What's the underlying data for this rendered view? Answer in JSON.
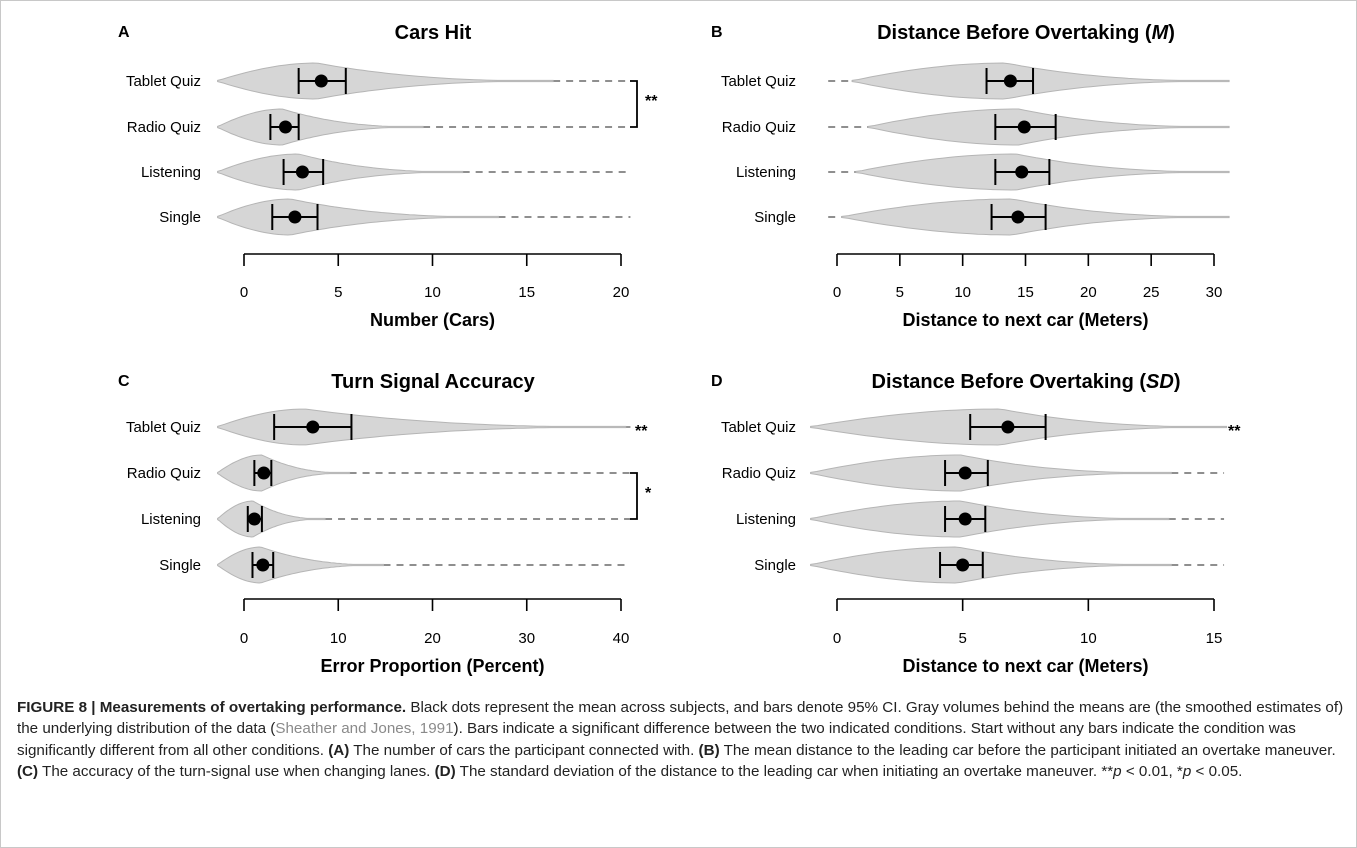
{
  "colors": {
    "violin": "#d6d6d6",
    "violin_stroke": "#b5b5b5",
    "dash": "#6a6a6a",
    "mark": "#000000"
  },
  "chart_data": [
    {
      "panel_letter": "A",
      "type": "violin",
      "title": "Cars Hit",
      "title_italic": "",
      "xlabel": "Number (Cars)",
      "xlim": [
        0,
        20
      ],
      "xticks": [
        0,
        5,
        10,
        15,
        20
      ],
      "categories": [
        "Tablet Quiz",
        "Radio Quiz",
        "Listening",
        "Single"
      ],
      "mean": [
        4.1,
        2.2,
        3.1,
        2.7
      ],
      "ci_low": [
        2.9,
        1.4,
        2.1,
        1.5
      ],
      "ci_high": [
        5.4,
        2.9,
        4.2,
        3.9
      ],
      "violin_max": [
        16.4,
        9.5,
        11.6,
        13.5
      ],
      "dash_start": [
        16.4,
        9.5,
        11.6,
        13.5
      ],
      "dash_end": [
        20.5,
        20.5,
        20.5,
        20.5
      ],
      "significance": [
        {
          "type": "bracket",
          "from": "Tablet Quiz",
          "to": "Radio Quiz",
          "label": "**"
        }
      ]
    },
    {
      "panel_letter": "B",
      "type": "violin",
      "title": "Distance Before Overtaking (",
      "title_italic": "M",
      "title_end": ")",
      "xlabel": "Distance to next car (Meters)",
      "xlim": [
        0,
        30
      ],
      "xticks": [
        0,
        5,
        10,
        15,
        20,
        25,
        30
      ],
      "categories": [
        "Tablet Quiz",
        "Radio Quiz",
        "Listening",
        "Single"
      ],
      "mean": [
        13.8,
        14.9,
        14.7,
        14.4
      ],
      "ci_low": [
        11.9,
        12.6,
        12.6,
        12.3
      ],
      "ci_high": [
        15.6,
        17.4,
        16.9,
        16.6
      ],
      "violin_min": [
        1.2,
        2.5,
        1.5,
        0.4
      ],
      "dash_start": [
        -0.7,
        -0.7,
        -0.7,
        -0.7
      ],
      "dash_end": [
        1.2,
        2.5,
        1.5,
        0.4
      ],
      "significance": []
    },
    {
      "panel_letter": "C",
      "type": "violin",
      "title": "Turn Signal Accuracy",
      "title_italic": "",
      "xlabel": "Error Proportion (Percent)",
      "xlim": [
        0,
        40
      ],
      "xticks": [
        0,
        10,
        20,
        30,
        40
      ],
      "categories": [
        "Tablet Quiz",
        "Radio Quiz",
        "Listening",
        "Single"
      ],
      "mean": [
        7.3,
        2.1,
        1.1,
        2.0
      ],
      "ci_low": [
        3.2,
        1.1,
        0.4,
        0.9
      ],
      "ci_high": [
        11.4,
        2.9,
        1.9,
        3.1
      ],
      "violin_max": [
        40.5,
        11.2,
        8.6,
        14.8
      ],
      "dash_start": [
        40.5,
        11.2,
        8.6,
        14.8
      ],
      "dash_end": [
        41,
        41,
        41,
        41
      ],
      "significance": [
        {
          "type": "star",
          "row": "Tablet Quiz",
          "label": "**"
        },
        {
          "type": "bracket",
          "from": "Radio Quiz",
          "to": "Listening",
          "label": "*"
        }
      ]
    },
    {
      "panel_letter": "D",
      "type": "violin",
      "title": "Distance Before Overtaking (",
      "title_italic": "SD",
      "title_end": ")",
      "xlabel": "Distance to next car (Meters)",
      "xlim": [
        0,
        15
      ],
      "xticks": [
        0,
        5,
        10,
        15
      ],
      "categories": [
        "Tablet Quiz",
        "Radio Quiz",
        "Listening",
        "Single"
      ],
      "mean": [
        6.8,
        5.1,
        5.1,
        5.0
      ],
      "ci_low": [
        5.3,
        4.3,
        4.3,
        4.1
      ],
      "ci_high": [
        8.3,
        6.0,
        5.9,
        5.8
      ],
      "violin_max": [
        15.5,
        13.3,
        13.2,
        13.3
      ],
      "dash_start": [
        15.5,
        13.3,
        13.2,
        13.3
      ],
      "dash_end": [
        15.5,
        15.4,
        15.4,
        15.4
      ],
      "significance": [
        {
          "type": "star",
          "row": "Tablet Quiz",
          "label": "**"
        }
      ]
    }
  ],
  "caption": {
    "label": "FIGURE 8 | Measurements of overtaking performance.",
    "text1": " Black dots represent the mean across subjects, and bars denote 95% CI. Gray volumes behind the means are (the smoothed estimates of) the underlying distribution of the data (",
    "reference": "Sheather and Jones, 1991",
    "text2": "). Bars indicate a significant difference between the two indicated conditions. Start without any bars indicate the condition was significantly different from all other conditions. ",
    "a_label": "(A)",
    "a_text": " The number of cars the participant connected with. ",
    "b_label": "(B)",
    "b_text": " The mean distance to the leading car before the participant initiated an overtake maneuver. ",
    "c_label": "(C)",
    "c_text": " The accuracy of the turn-signal use when changing lanes. ",
    "d_label": "(D)",
    "d_text": " The standard deviation of the distance to the leading car when initiating an overtake maneuver. **",
    "p1": "p",
    "p1_text": " < 0.01, *",
    "p2": "p",
    "p2_text": " < 0.05."
  }
}
